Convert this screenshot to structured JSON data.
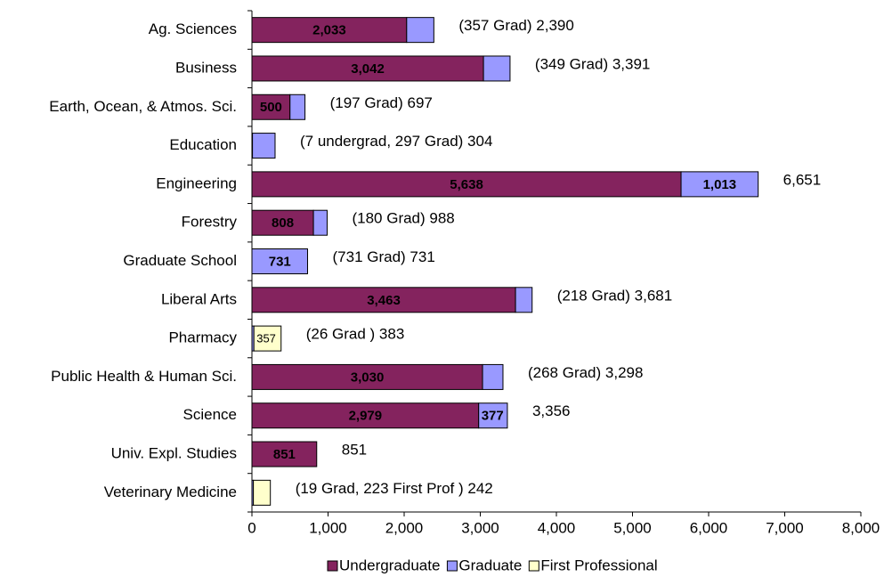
{
  "chart_data": {
    "type": "bar",
    "orientation": "horizontal",
    "stacked": true,
    "categories": [
      "Ag. Sciences",
      "Business",
      "Earth, Ocean, & Atmos. Sci.",
      "Education",
      "Engineering",
      "Forestry",
      "Graduate School",
      "Liberal Arts",
      "Pharmacy",
      "Public Health & Human Sci.",
      "Science",
      "Univ. Expl. Studies",
      "Veterinary Medicine"
    ],
    "series": [
      {
        "name": "Undergraduate",
        "color": "#84235e",
        "values": [
          2033,
          3042,
          500,
          7,
          5638,
          808,
          null,
          3463,
          null,
          3030,
          2979,
          851,
          null
        ],
        "value_labels": [
          "2,033",
          "3,042",
          "500",
          null,
          "5,638",
          "808",
          null,
          "3,463",
          null,
          "3,030",
          "2,979",
          "851",
          null
        ],
        "label_color": "#ffffff"
      },
      {
        "name": "Graduate",
        "color": "#9999ff",
        "values": [
          357,
          349,
          197,
          297,
          1013,
          180,
          731,
          218,
          26,
          268,
          377,
          null,
          19
        ],
        "value_labels": [
          null,
          null,
          null,
          null,
          "1,013",
          null,
          "731",
          null,
          null,
          null,
          "377",
          null,
          null
        ],
        "label_color": "#000080"
      },
      {
        "name": "First Professional",
        "color": "#ffffcc",
        "values": [
          null,
          null,
          null,
          null,
          null,
          null,
          null,
          null,
          357,
          null,
          null,
          null,
          223
        ],
        "value_labels": [
          null,
          null,
          null,
          null,
          null,
          null,
          null,
          null,
          "357",
          null,
          null,
          null,
          null
        ],
        "label_color": "#000000"
      }
    ],
    "annotations": [
      "(357 Grad) 2,390",
      "(349 Grad) 3,391",
      "(197 Grad) 697",
      "(7 undergrad, 297 Grad) 304",
      "6,651",
      "(180 Grad) 988",
      "(731 Grad) 731",
      "(218 Grad) 3,681",
      "(26 Grad ) 383",
      "(268 Grad) 3,298",
      "3,356",
      "851",
      "(19 Grad, 223 First Prof ) 242"
    ],
    "xlim": [
      0,
      8000
    ],
    "xticks": [
      0,
      {
        "value": 1000,
        "label": "1,000"
      },
      {
        "value": 2000,
        "label": "2,000"
      },
      {
        "value": 3000,
        "label": "3,000"
      },
      {
        "value": 4000,
        "label": "4,000"
      },
      {
        "value": 5000,
        "label": "5,000"
      },
      {
        "value": 6000,
        "label": "6,000"
      },
      {
        "value": 7000,
        "label": "7,000"
      },
      {
        "value": 8000,
        "label": "8,000"
      }
    ],
    "legend": "bottom"
  }
}
